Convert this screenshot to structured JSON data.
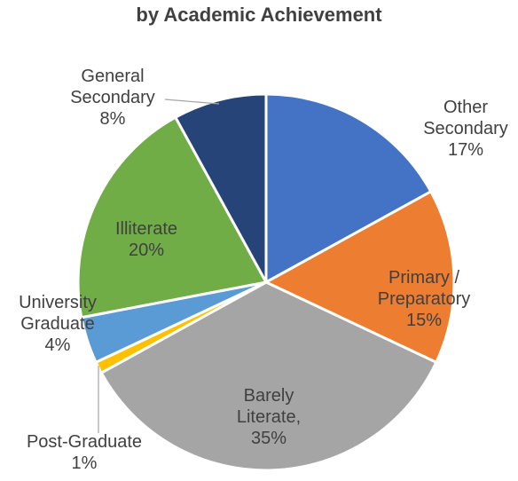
{
  "chart_data": {
    "type": "pie",
    "title": "by Academic Achievement",
    "categories": [
      "Other Secondary",
      "Primary / Preparatory",
      "Barely Literate,",
      "Post-Graduate",
      "University Graduate",
      "Illiterate",
      "General Secondary"
    ],
    "values": [
      17,
      15,
      35,
      1,
      4,
      20,
      8
    ],
    "value_labels": [
      "17%",
      "15%",
      "35%",
      "1%",
      "4%",
      "20%",
      "8%"
    ],
    "colors": [
      "#4472c4",
      "#ed7d31",
      "#a5a5a5",
      "#ffc000",
      "#5b9bd5",
      "#70ad47",
      "#264478"
    ]
  }
}
